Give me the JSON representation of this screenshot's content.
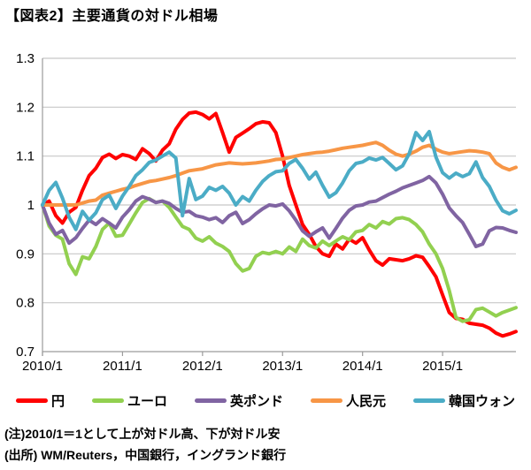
{
  "title": "【図表2】主要通貨の対ドル相場",
  "notes": {
    "line1": "(注)2010/1＝1として上が対ドル高、下が対ドル安",
    "line2": "(出所) WM/Reuters，中国銀行，イングランド銀行"
  },
  "colors": {
    "grid": "#c8c8c8",
    "axis": "#9b9b9b",
    "text": "#000000"
  },
  "chart_data": {
    "type": "line",
    "title": "【図表2】主要通貨の対ドル相場",
    "x_unit": "month",
    "x_range": [
      "2010/1",
      "2015/12"
    ],
    "x_tick_labels": [
      "2010/1",
      "2011/1",
      "2012/1",
      "2013/1",
      "2014/1",
      "2015/1"
    ],
    "x_tick_indices": [
      0,
      12,
      24,
      36,
      48,
      60
    ],
    "ylim": [
      0.7,
      1.3
    ],
    "y_ticks": [
      0.7,
      0.8,
      0.9,
      1.0,
      1.1,
      1.2,
      1.3
    ],
    "y_tick_labels": [
      "0.7",
      "0.8",
      "0.9",
      "1",
      "1.1",
      "1.2",
      "1.3"
    ],
    "grid": "horizontal",
    "legend_position": "bottom",
    "series": [
      {
        "name": "円",
        "color": "#ff0000",
        "values": [
          1.0,
          1.008,
          0.978,
          0.963,
          0.985,
          0.995,
          1.03,
          1.06,
          1.075,
          1.097,
          1.104,
          1.095,
          1.103,
          1.1,
          1.093,
          1.115,
          1.105,
          1.09,
          1.112,
          1.125,
          1.155,
          1.175,
          1.188,
          1.19,
          1.185,
          1.176,
          1.187,
          1.148,
          1.108,
          1.138,
          1.147,
          1.156,
          1.166,
          1.17,
          1.168,
          1.148,
          1.1,
          1.04,
          1.0,
          0.96,
          0.94,
          0.915,
          0.9,
          0.895,
          0.92,
          0.91,
          0.93,
          0.922,
          0.933,
          0.908,
          0.886,
          0.877,
          0.89,
          0.888,
          0.886,
          0.89,
          0.896,
          0.893,
          0.874,
          0.853,
          0.816,
          0.78,
          0.768,
          0.766,
          0.758,
          0.756,
          0.754,
          0.748,
          0.738,
          0.732,
          0.736,
          0.741
        ]
      },
      {
        "name": "ユーロ",
        "color": "#92d050",
        "values": [
          1.0,
          0.957,
          0.938,
          0.93,
          0.88,
          0.858,
          0.894,
          0.89,
          0.915,
          0.95,
          0.963,
          0.936,
          0.938,
          0.961,
          0.984,
          1.005,
          1.013,
          1.005,
          1.008,
          0.995,
          0.975,
          0.956,
          0.95,
          0.932,
          0.926,
          0.935,
          0.922,
          0.915,
          0.905,
          0.88,
          0.865,
          0.87,
          0.895,
          0.903,
          0.9,
          0.905,
          0.9,
          0.914,
          0.905,
          0.93,
          0.917,
          0.912,
          0.926,
          0.917,
          0.926,
          0.935,
          0.929,
          0.945,
          0.948,
          0.96,
          0.953,
          0.966,
          0.961,
          0.972,
          0.974,
          0.97,
          0.96,
          0.945,
          0.92,
          0.9,
          0.87,
          0.825,
          0.77,
          0.762,
          0.765,
          0.786,
          0.789,
          0.781,
          0.773,
          0.78,
          0.785,
          0.79
        ]
      },
      {
        "name": "英ポンド",
        "color": "#8064a2",
        "values": [
          1.0,
          0.963,
          0.94,
          0.948,
          0.922,
          0.933,
          0.952,
          0.969,
          0.96,
          0.972,
          0.963,
          0.953,
          0.975,
          0.99,
          1.008,
          1.017,
          1.012,
          1.005,
          1.008,
          1.003,
          0.993,
          0.985,
          0.987,
          0.978,
          0.975,
          0.97,
          0.974,
          0.964,
          0.978,
          0.985,
          0.962,
          0.97,
          0.982,
          0.992,
          1.0,
          0.998,
          1.002,
          0.988,
          0.969,
          0.947,
          0.936,
          0.945,
          0.953,
          0.932,
          0.952,
          0.973,
          0.989,
          0.998,
          1.0,
          1.006,
          1.008,
          1.015,
          1.022,
          1.028,
          1.035,
          1.04,
          1.045,
          1.05,
          1.058,
          1.045,
          1.022,
          0.994,
          0.978,
          0.964,
          0.94,
          0.915,
          0.92,
          0.947,
          0.954,
          0.953,
          0.948,
          0.944
        ]
      },
      {
        "name": "人民元",
        "color": "#f79646",
        "values": [
          1.0,
          1.0,
          1.0,
          1.0,
          1.0,
          1.0,
          1.004,
          1.008,
          1.01,
          1.02,
          1.024,
          1.028,
          1.032,
          1.035,
          1.04,
          1.044,
          1.048,
          1.05,
          1.053,
          1.056,
          1.06,
          1.065,
          1.07,
          1.072,
          1.074,
          1.078,
          1.082,
          1.084,
          1.086,
          1.085,
          1.084,
          1.085,
          1.086,
          1.088,
          1.09,
          1.093,
          1.094,
          1.097,
          1.1,
          1.103,
          1.105,
          1.107,
          1.108,
          1.11,
          1.113,
          1.116,
          1.118,
          1.12,
          1.122,
          1.125,
          1.128,
          1.122,
          1.112,
          1.104,
          1.1,
          1.104,
          1.11,
          1.118,
          1.122,
          1.114,
          1.108,
          1.105,
          1.107,
          1.109,
          1.111,
          1.11,
          1.108,
          1.105,
          1.086,
          1.077,
          1.072,
          1.077
        ]
      },
      {
        "name": "韓国ウォン",
        "color": "#4bacc6",
        "values": [
          1.0,
          1.03,
          1.046,
          1.014,
          0.975,
          0.95,
          0.987,
          0.969,
          0.984,
          1.011,
          1.02,
          0.993,
          1.018,
          1.038,
          1.06,
          1.072,
          1.087,
          1.092,
          1.1,
          1.108,
          1.096,
          0.978,
          1.054,
          1.011,
          1.018,
          1.036,
          1.03,
          1.038,
          1.024,
          1.0,
          1.017,
          1.008,
          1.03,
          1.048,
          1.06,
          1.068,
          1.07,
          1.085,
          1.093,
          1.075,
          1.053,
          1.067,
          1.04,
          1.016,
          1.025,
          1.045,
          1.07,
          1.085,
          1.088,
          1.096,
          1.092,
          1.097,
          1.085,
          1.072,
          1.08,
          1.105,
          1.148,
          1.132,
          1.15,
          1.098,
          1.066,
          1.055,
          1.065,
          1.058,
          1.064,
          1.088,
          1.056,
          1.038,
          1.01,
          0.988,
          0.982,
          0.989
        ]
      }
    ]
  }
}
